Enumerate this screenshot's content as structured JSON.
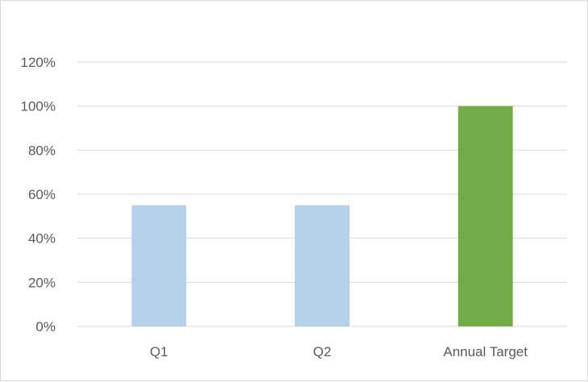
{
  "chart_data": {
    "type": "bar",
    "title": "",
    "xlabel": "",
    "ylabel": "",
    "categories": [
      "Q1",
      "Q2",
      "Annual Target"
    ],
    "values": [
      0.55,
      0.55,
      1.0
    ],
    "bar_colors": [
      "#b4d0ea",
      "#b4d0ea",
      "#70ad47"
    ],
    "ylim": [
      0,
      1.2
    ],
    "y_ticks": [
      0,
      0.2,
      0.4,
      0.6,
      0.8,
      1.0,
      1.2
    ],
    "y_tick_labels": [
      "0%",
      "20%",
      "40%",
      "60%",
      "80%",
      "100%",
      "120%"
    ],
    "grid": true,
    "legend": "none",
    "colors": {
      "gridline": "#d9d9d9",
      "axis_text": "#595959",
      "border": "#d9d9d9"
    }
  }
}
